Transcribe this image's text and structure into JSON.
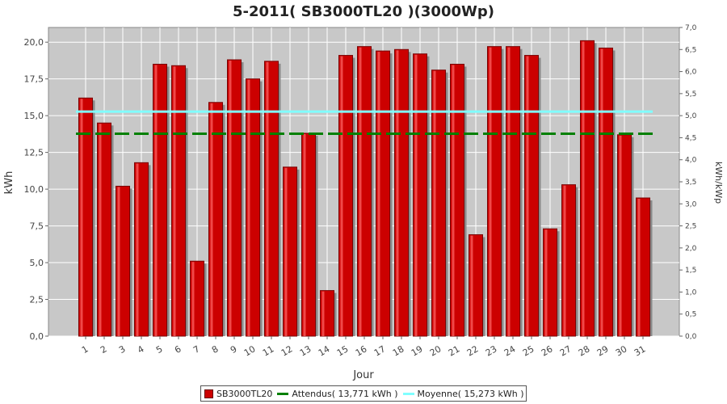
{
  "chart_data": {
    "type": "bar",
    "title": "5-2011( SB3000TL20 )(3000Wp)",
    "xlabel": "Jour",
    "ylabel": "kWh",
    "y2label": "kWh/kWp",
    "ylim": [
      0,
      21
    ],
    "y2lim": [
      0,
      7
    ],
    "yticks": [
      "0,0",
      "2,5",
      "5,0",
      "7,5",
      "10,0",
      "12,5",
      "15,0",
      "17,5",
      "20,0"
    ],
    "y2ticks": [
      "0,0",
      "0,5",
      "1,0",
      "1,5",
      "2,0",
      "2,5",
      "3,0",
      "3,5",
      "4,0",
      "4,5",
      "5,0",
      "5,5",
      "6,0",
      "6,5",
      "7,0"
    ],
    "categories": [
      "1",
      "2",
      "3",
      "4",
      "5",
      "6",
      "7",
      "8",
      "9",
      "10",
      "11",
      "12",
      "13",
      "14",
      "15",
      "16",
      "17",
      "18",
      "19",
      "20",
      "21",
      "22",
      "23",
      "24",
      "25",
      "26",
      "27",
      "28",
      "29",
      "30",
      "31"
    ],
    "series": [
      {
        "name": "SB3000TL20",
        "color": "#cc0000",
        "values": [
          16.2,
          14.5,
          10.2,
          11.8,
          18.5,
          18.4,
          5.1,
          15.9,
          18.8,
          17.5,
          18.7,
          11.5,
          13.8,
          3.1,
          19.1,
          19.7,
          19.4,
          19.5,
          19.2,
          18.1,
          18.5,
          6.9,
          19.7,
          19.7,
          19.1,
          7.3,
          10.3,
          20.1,
          19.6,
          13.7,
          9.4
        ]
      }
    ],
    "reference_lines": [
      {
        "name": "Attendus( 13,771 kWh )",
        "value": 13.771,
        "color": "#008000"
      },
      {
        "name": "Moyenne( 15,273 kWh )",
        "value": 15.273,
        "color": "#80ffff"
      }
    ],
    "grid": true,
    "legend_position": "bottom"
  }
}
